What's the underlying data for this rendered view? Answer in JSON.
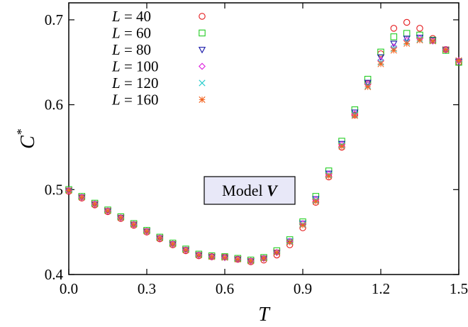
{
  "chart_data": {
    "type": "scatter",
    "title": "",
    "xlabel": "T",
    "ylabel": "C",
    "ylabel_superscript": "*",
    "xlim": [
      0.0,
      1.5
    ],
    "ylim": [
      0.4,
      0.72
    ],
    "xticks": [
      0.0,
      0.3,
      0.6,
      0.9,
      1.2,
      1.5
    ],
    "xtick_labels": [
      "0.0",
      "0.3",
      "0.6",
      "0.9",
      "1.2",
      "1.5"
    ],
    "yticks": [
      0.4,
      0.5,
      0.6,
      0.7
    ],
    "ytick_labels": [
      "0.4",
      "0.5",
      "0.6",
      "0.7"
    ],
    "grid": false,
    "legend_placement": "top-left",
    "annotation": {
      "prefix": "Model",
      "variable": "V"
    },
    "x": [
      0.0,
      0.05,
      0.1,
      0.15,
      0.2,
      0.25,
      0.3,
      0.35,
      0.4,
      0.45,
      0.5,
      0.55,
      0.6,
      0.65,
      0.7,
      0.75,
      0.8,
      0.85,
      0.9,
      0.95,
      1.0,
      1.05,
      1.1,
      1.15,
      1.2,
      1.25,
      1.3,
      1.35,
      1.4,
      1.45,
      1.5
    ],
    "series": [
      {
        "name": "L =   40",
        "label_var": "L",
        "label_rest": " =   40",
        "marker": "circle",
        "color": "#e41a1c",
        "values": [
          0.498,
          0.49,
          0.482,
          0.474,
          0.466,
          0.458,
          0.45,
          0.442,
          0.435,
          0.428,
          0.422,
          0.421,
          0.421,
          0.418,
          0.415,
          0.417,
          0.423,
          0.435,
          0.455,
          0.485,
          0.515,
          0.55,
          0.588,
          0.625,
          0.66,
          0.69,
          0.697,
          0.69,
          0.678,
          0.665,
          0.65
        ]
      },
      {
        "name": "L =   60",
        "label_var": "L",
        "label_rest": " =   60",
        "marker": "square",
        "color": "#22cc22",
        "values": [
          0.5,
          0.492,
          0.484,
          0.476,
          0.468,
          0.46,
          0.452,
          0.444,
          0.437,
          0.43,
          0.424,
          0.422,
          0.421,
          0.419,
          0.417,
          0.42,
          0.428,
          0.441,
          0.462,
          0.492,
          0.522,
          0.557,
          0.594,
          0.63,
          0.662,
          0.68,
          0.684,
          0.682,
          0.676,
          0.664,
          0.65
        ]
      },
      {
        "name": "L =   80",
        "label_var": "L",
        "label_rest": " =   80",
        "marker": "triangle-down",
        "color": "#1a1aaa",
        "values": [
          0.499,
          0.491,
          0.483,
          0.475,
          0.467,
          0.459,
          0.451,
          0.443,
          0.436,
          0.429,
          0.423,
          0.421,
          0.42,
          0.418,
          0.416,
          0.419,
          0.426,
          0.439,
          0.46,
          0.489,
          0.519,
          0.554,
          0.591,
          0.626,
          0.656,
          0.672,
          0.678,
          0.679,
          0.676,
          0.665,
          0.651
        ]
      },
      {
        "name": "L = 100",
        "label_var": "L",
        "label_rest": " = 100",
        "marker": "diamond",
        "color": "#dd22dd",
        "values": [
          0.499,
          0.491,
          0.483,
          0.475,
          0.467,
          0.459,
          0.451,
          0.443,
          0.436,
          0.429,
          0.423,
          0.421,
          0.42,
          0.418,
          0.416,
          0.419,
          0.426,
          0.439,
          0.46,
          0.488,
          0.518,
          0.553,
          0.589,
          0.624,
          0.652,
          0.668,
          0.676,
          0.678,
          0.675,
          0.665,
          0.652
        ]
      },
      {
        "name": "L = 120",
        "label_var": "L",
        "label_rest": " = 120",
        "marker": "cross",
        "color": "#22cccc",
        "values": [
          0.499,
          0.491,
          0.483,
          0.475,
          0.467,
          0.459,
          0.451,
          0.443,
          0.436,
          0.429,
          0.423,
          0.421,
          0.42,
          0.418,
          0.416,
          0.419,
          0.426,
          0.439,
          0.459,
          0.487,
          0.517,
          0.552,
          0.588,
          0.622,
          0.65,
          0.666,
          0.674,
          0.677,
          0.675,
          0.665,
          0.652
        ]
      },
      {
        "name": "L = 160",
        "label_var": "L",
        "label_rest": " = 160",
        "marker": "asterisk",
        "color": "#f26522",
        "values": [
          0.499,
          0.491,
          0.483,
          0.475,
          0.467,
          0.459,
          0.451,
          0.443,
          0.436,
          0.429,
          0.423,
          0.421,
          0.42,
          0.418,
          0.416,
          0.419,
          0.426,
          0.438,
          0.458,
          0.486,
          0.516,
          0.551,
          0.587,
          0.621,
          0.648,
          0.664,
          0.672,
          0.676,
          0.675,
          0.665,
          0.652
        ]
      }
    ]
  }
}
